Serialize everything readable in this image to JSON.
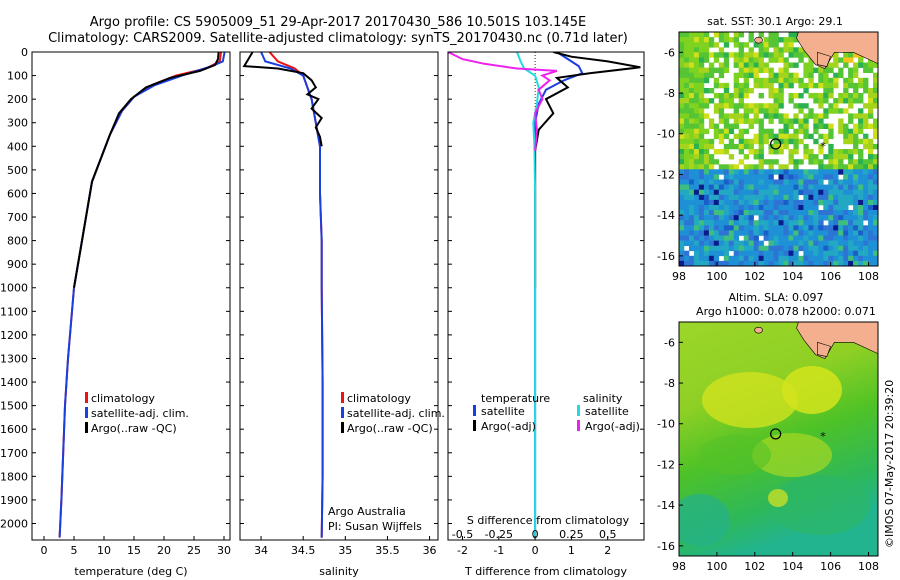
{
  "title_line1": "Argo profile: CS 5905009_51 29-Apr-2017 20170430_586 10.501S 103.145E",
  "title_line2": "Climatology: CARS2009. Satellite-adjusted climatology: synTS_20170430.nc (0.71d later)",
  "sst_title": "sat. SST: 30.1  Argo: 29.1",
  "sla_title1": "Altim. SLA: 0.097",
  "sla_title2": "Argo h1000: 0.078 h2000: 0.071",
  "credit": "©IMOS 07-May-2017 20:39:20",
  "attribution_line1": "Argo Australia",
  "attribution_line2": "PI: Susan Wijffels",
  "colors": {
    "climatology": "#ee1111",
    "satellite": "#1a3fe0",
    "argo": "#000000",
    "argo_s": "#ee22ee",
    "sat_s": "#22dddd",
    "land": "#f4b08e"
  },
  "chart_data": [
    {
      "type": "line",
      "name": "temperature",
      "xlabel": "temperature (deg C)",
      "ylabel": "",
      "xlim": [
        -2,
        31
      ],
      "ylim": [
        2070,
        0
      ],
      "xticks": [
        0,
        5,
        10,
        15,
        20,
        25,
        30
      ],
      "yticks": [
        0,
        100,
        200,
        300,
        400,
        500,
        600,
        700,
        800,
        900,
        1000,
        1100,
        1200,
        1300,
        1400,
        1500,
        1600,
        1700,
        1800,
        1900,
        2000
      ],
      "legend": [
        "climatology",
        "satellite-adj. clim.",
        "Argo(..raw -QC)"
      ],
      "series": [
        {
          "name": "climatology",
          "color": "#ee1111",
          "points": [
            [
              29.5,
              0
            ],
            [
              29.3,
              40
            ],
            [
              27,
              70
            ],
            [
              22,
              100
            ],
            [
              18,
              140
            ],
            [
              15,
              190
            ],
            [
              13,
              250
            ],
            [
              11,
              350
            ],
            [
              9.5,
              450
            ],
            [
              8,
              550
            ],
            [
              7,
              700
            ],
            [
              6,
              850
            ],
            [
              5,
              1000
            ],
            [
              4.5,
              1150
            ],
            [
              4,
              1300
            ],
            [
              3.5,
              1500
            ],
            [
              3.2,
              1700
            ],
            [
              2.9,
              1900
            ],
            [
              2.6,
              2060
            ]
          ]
        },
        {
          "name": "satellite-adj. clim.",
          "color": "#1a3fe0",
          "points": [
            [
              30.1,
              0
            ],
            [
              29.8,
              40
            ],
            [
              28,
              60
            ],
            [
              23,
              100
            ],
            [
              18.5,
              140
            ],
            [
              15,
              190
            ],
            [
              13,
              250
            ],
            [
              11,
              350
            ],
            [
              9.5,
              450
            ],
            [
              8,
              550
            ],
            [
              7,
              700
            ],
            [
              6,
              850
            ],
            [
              5,
              1000
            ],
            [
              4.5,
              1150
            ],
            [
              4,
              1300
            ],
            [
              3.5,
              1500
            ],
            [
              3.2,
              1700
            ],
            [
              2.9,
              1900
            ],
            [
              2.6,
              2060
            ]
          ]
        },
        {
          "name": "Argo(..raw -QC)",
          "color": "#000000",
          "points": [
            [
              29.1,
              0
            ],
            [
              29.0,
              30
            ],
            [
              28.5,
              55
            ],
            [
              26,
              80
            ],
            [
              21,
              110
            ],
            [
              17,
              150
            ],
            [
              14.5,
              200
            ],
            [
              12.5,
              260
            ],
            [
              11,
              350
            ],
            [
              9.5,
              450
            ],
            [
              8,
              550
            ],
            [
              7,
              700
            ],
            [
              6,
              850
            ],
            [
              5,
              1000
            ]
          ]
        }
      ]
    },
    {
      "type": "line",
      "name": "salinity",
      "xlabel": "salinity",
      "ylabel": "",
      "xlim": [
        33.75,
        36.1
      ],
      "ylim": [
        2070,
        0
      ],
      "xticks": [
        34,
        34.5,
        35,
        35.5,
        36
      ],
      "legend": [
        "climatology",
        "satellite-adj. clim.",
        "Argo(..raw -QC)"
      ],
      "series": [
        {
          "name": "climatology",
          "color": "#ee1111",
          "points": [
            [
              34.1,
              0
            ],
            [
              34.2,
              40
            ],
            [
              34.4,
              70
            ],
            [
              34.5,
              100
            ],
            [
              34.55,
              150
            ],
            [
              34.6,
              200
            ],
            [
              34.65,
              300
            ],
            [
              34.7,
              400
            ],
            [
              34.7,
              600
            ],
            [
              34.72,
              800
            ],
            [
              34.72,
              1000
            ],
            [
              34.73,
              1400
            ],
            [
              34.73,
              1800
            ],
            [
              34.72,
              2060
            ]
          ]
        },
        {
          "name": "satellite-adj. clim.",
          "color": "#1a3fe0",
          "points": [
            [
              34.0,
              0
            ],
            [
              34.05,
              40
            ],
            [
              34.35,
              70
            ],
            [
              34.5,
              100
            ],
            [
              34.55,
              150
            ],
            [
              34.6,
              200
            ],
            [
              34.65,
              300
            ],
            [
              34.7,
              400
            ],
            [
              34.7,
              600
            ],
            [
              34.72,
              800
            ],
            [
              34.72,
              1000
            ],
            [
              34.73,
              1400
            ],
            [
              34.73,
              1800
            ],
            [
              34.72,
              2060
            ]
          ]
        },
        {
          "name": "Argo(..raw -QC)",
          "color": "#000000",
          "points": [
            [
              33.9,
              0
            ],
            [
              33.85,
              30
            ],
            [
              33.8,
              60
            ],
            [
              34.2,
              70
            ],
            [
              34.5,
              90
            ],
            [
              34.6,
              120
            ],
            [
              34.65,
              150
            ],
            [
              34.55,
              180
            ],
            [
              34.68,
              200
            ],
            [
              34.6,
              240
            ],
            [
              34.72,
              280
            ],
            [
              34.65,
              320
            ],
            [
              34.7,
              360
            ],
            [
              34.72,
              400
            ]
          ]
        }
      ]
    },
    {
      "type": "line",
      "name": "difference",
      "xlabel": "T difference from climatology",
      "xlabel2": "S difference from climatology",
      "xlim": [
        -2.4,
        3.0
      ],
      "ylim": [
        2070,
        0
      ],
      "xticks": [
        -2,
        -1,
        0,
        1,
        2
      ],
      "xticks_s": [
        -0.5,
        -0.25,
        0,
        0.25,
        0.5
      ],
      "legend_title_t": "temperature",
      "legend_title_s": "salinity",
      "legend": [
        "satellite",
        "Argo(-adj)",
        "satellite",
        "Argo(-adj)"
      ],
      "series": [
        {
          "name": "T satellite",
          "color": "#1a3fe0",
          "points": [
            [
              0.6,
              0
            ],
            [
              1.0,
              40
            ],
            [
              1.2,
              60
            ],
            [
              1.3,
              90
            ],
            [
              0.8,
              120
            ],
            [
              0.3,
              160
            ],
            [
              0.1,
              220
            ],
            [
              0,
              300
            ],
            [
              0,
              2060
            ]
          ]
        },
        {
          "name": "T Argo(-adj)",
          "color": "#000000",
          "points": [
            [
              0.5,
              0
            ],
            [
              1.0,
              20
            ],
            [
              2.0,
              40
            ],
            [
              2.9,
              65
            ],
            [
              1.5,
              90
            ],
            [
              0.6,
              110
            ],
            [
              0.9,
              150
            ],
            [
              0.3,
              200
            ],
            [
              0.5,
              260
            ],
            [
              0.1,
              330
            ],
            [
              0,
              420
            ],
            [
              0,
              1000
            ]
          ]
        },
        {
          "name": "S satellite",
          "color": "#22dddd",
          "points": [
            [
              -0.5,
              0
            ],
            [
              -0.4,
              40
            ],
            [
              -0.3,
              70
            ],
            [
              0,
              100
            ],
            [
              0.1,
              150
            ],
            [
              0.05,
              220
            ],
            [
              -0.05,
              300
            ],
            [
              -0.02,
              400
            ],
            [
              0,
              600
            ],
            [
              0,
              2060
            ]
          ]
        },
        {
          "name": "S Argo(-adj)",
          "color": "#ee22ee",
          "points": [
            [
              -2.4,
              0
            ],
            [
              -2.0,
              30
            ],
            [
              -1.4,
              50
            ],
            [
              -0.5,
              70
            ],
            [
              0.6,
              80
            ],
            [
              0.2,
              100
            ],
            [
              0.4,
              120
            ],
            [
              0.1,
              160
            ],
            [
              0.2,
              200
            ],
            [
              0,
              260
            ],
            [
              0.05,
              330
            ],
            [
              0,
              420
            ]
          ]
        }
      ]
    },
    {
      "type": "heatmap",
      "name": "sst-map",
      "title": "sat. SST: 30.1  Argo: 29.1",
      "xlim": [
        98,
        108.5
      ],
      "ylim": [
        -16.5,
        -5
      ],
      "xticks": [
        98,
        100,
        102,
        104,
        106,
        108
      ],
      "yticks": [
        -6,
        -8,
        -10,
        -12,
        -14,
        -16
      ],
      "float_position": [
        103.1,
        -10.5
      ]
    },
    {
      "type": "heatmap",
      "name": "sla-map",
      "title": "Altim. SLA: 0.097",
      "xlim": [
        98,
        108.5
      ],
      "ylim": [
        -16.5,
        -5
      ],
      "xticks": [
        98,
        100,
        102,
        104,
        106,
        108
      ],
      "yticks": [
        -6,
        -8,
        -10,
        -12,
        -14,
        -16
      ],
      "float_position": [
        103.1,
        -10.5
      ]
    }
  ]
}
